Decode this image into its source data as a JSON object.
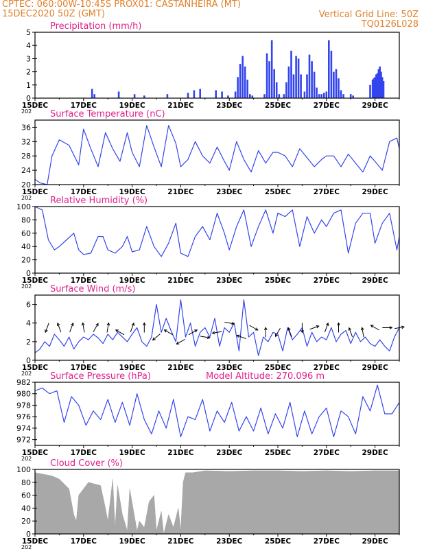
{
  "header": {
    "left_line1": "CPTEC:   060:00W-10:45S   PROX01: CASTANHEIRA (MT)",
    "left_line2": "15DEC2020  50Z  (GMT)",
    "right_line2": "Vertical Grid Line: 50Z",
    "right_line3": "TQ0126L028"
  },
  "colors": {
    "header": "#e0802a",
    "title": "#e0208a",
    "line": "#3344ee",
    "cloud": "#a8a8a8",
    "wind_arrow": "#000000"
  },
  "x_axis": {
    "tick_labels": [
      "15DEC",
      "17DEC",
      "19DEC",
      "21DEC",
      "23DEC",
      "25DEC",
      "27DEC",
      "29DEC"
    ],
    "tick_days": [
      0,
      2,
      4,
      6,
      8,
      10,
      12,
      14
    ],
    "year_stub": "202",
    "range_days": [
      0,
      15
    ]
  },
  "chart_data": [
    {
      "id": "precip",
      "type": "bar",
      "title": "Precipitation  (mm/h)",
      "ylim": [
        0,
        5
      ],
      "yticks": [
        0,
        1,
        2,
        3,
        4,
        5
      ],
      "x": [
        2.35,
        2.45,
        3.45,
        4.1,
        4.5,
        5.45,
        6.3,
        6.55,
        6.8,
        7.45,
        7.7,
        7.95,
        8.25,
        8.35,
        8.45,
        8.55,
        8.65,
        8.75,
        8.85,
        8.95,
        9.45,
        9.55,
        9.65,
        9.75,
        9.85,
        9.95,
        10.05,
        10.25,
        10.35,
        10.45,
        10.55,
        10.65,
        10.75,
        10.85,
        10.95,
        11.1,
        11.2,
        11.3,
        11.4,
        11.5,
        11.6,
        11.7,
        11.8,
        11.9,
        12.0,
        12.1,
        12.2,
        12.3,
        12.4,
        12.5,
        12.6,
        12.7,
        13.0,
        13.1,
        13.8,
        13.9,
        13.95,
        14.0,
        14.05,
        14.1,
        14.15,
        14.2,
        14.25,
        14.3,
        14.35
      ],
      "values": [
        0.7,
        0.3,
        0.5,
        0.3,
        0.2,
        0.3,
        0.4,
        0.6,
        0.7,
        0.6,
        0.5,
        0.2,
        0.5,
        1.6,
        2.6,
        3.2,
        2.4,
        1.4,
        0.3,
        0.2,
        0.3,
        3.4,
        2.8,
        4.4,
        2.2,
        1.2,
        0.3,
        0.3,
        1.2,
        2.4,
        3.6,
        1.8,
        3.2,
        3.0,
        1.8,
        0.5,
        1.8,
        3.3,
        2.8,
        2.0,
        0.8,
        0.3,
        0.3,
        0.4,
        0.5,
        4.4,
        3.6,
        2.0,
        2.2,
        1.5,
        0.6,
        0.3,
        0.3,
        0.2,
        1.0,
        1.4,
        1.5,
        1.6,
        1.8,
        1.9,
        2.2,
        2.4,
        2.0,
        1.6,
        1.3
      ]
    },
    {
      "id": "temp",
      "type": "line",
      "title": "Surface Temperature (nC)",
      "ylim": [
        20,
        38
      ],
      "yticks": [
        20,
        24,
        28,
        32,
        36
      ],
      "x": [
        0,
        0.2,
        0.5,
        0.7,
        1.0,
        1.4,
        1.8,
        2.0,
        2.3,
        2.6,
        2.9,
        3.2,
        3.5,
        3.8,
        4.0,
        4.3,
        4.6,
        4.9,
        5.2,
        5.5,
        5.8,
        6.0,
        6.3,
        6.6,
        6.9,
        7.2,
        7.5,
        7.8,
        8.0,
        8.3,
        8.6,
        8.9,
        9.2,
        9.5,
        9.8,
        10.0,
        10.3,
        10.6,
        10.9,
        11.2,
        11.5,
        11.8,
        12.0,
        12.3,
        12.6,
        12.9,
        13.2,
        13.5,
        13.8,
        14.0,
        14.3,
        14.6,
        14.9,
        15.0
      ],
      "values": [
        21.5,
        20.5,
        20.0,
        28.0,
        32.5,
        31.0,
        25.5,
        35.5,
        30.0,
        25.0,
        34.5,
        30.0,
        26.5,
        34.5,
        29.0,
        25.0,
        36.5,
        30.5,
        25.0,
        36.5,
        31.5,
        25.0,
        27.0,
        32.0,
        28.0,
        26.0,
        30.5,
        26.5,
        24.0,
        32.0,
        27.0,
        23.5,
        29.5,
        26.0,
        29.0,
        29.0,
        28.0,
        25.0,
        30.0,
        27.5,
        25.0,
        27.0,
        28.0,
        28.0,
        25.0,
        28.5,
        26.0,
        23.5,
        28.0,
        26.5,
        24.0,
        32.0,
        33.0,
        30.0
      ]
    },
    {
      "id": "rh",
      "type": "line",
      "title": "Relative Humidity  (%)",
      "ylim": [
        0,
        100
      ],
      "yticks": [
        0,
        20,
        40,
        60,
        80,
        100
      ],
      "x": [
        0,
        0.3,
        0.55,
        0.8,
        1.0,
        1.3,
        1.6,
        1.8,
        2.0,
        2.3,
        2.6,
        2.8,
        3.0,
        3.3,
        3.6,
        3.8,
        4.0,
        4.3,
        4.6,
        4.9,
        5.2,
        5.5,
        5.8,
        6.0,
        6.3,
        6.6,
        6.9,
        7.2,
        7.5,
        7.8,
        8.0,
        8.3,
        8.6,
        8.9,
        9.2,
        9.5,
        9.8,
        10.0,
        10.3,
        10.6,
        10.9,
        11.2,
        11.5,
        11.8,
        12.0,
        12.3,
        12.6,
        12.9,
        13.2,
        13.5,
        13.8,
        14.0,
        14.3,
        14.6,
        14.9,
        15.0
      ],
      "values": [
        100,
        95,
        50,
        35,
        40,
        50,
        60,
        35,
        28,
        30,
        55,
        55,
        35,
        30,
        40,
        55,
        32,
        35,
        70,
        40,
        25,
        45,
        75,
        30,
        25,
        55,
        70,
        50,
        90,
        60,
        35,
        70,
        95,
        40,
        70,
        95,
        60,
        90,
        85,
        95,
        40,
        85,
        60,
        80,
        70,
        90,
        95,
        30,
        75,
        90,
        90,
        45,
        75,
        90,
        35,
        55
      ]
    },
    {
      "id": "wind",
      "type": "line",
      "title": "Surface Wind  (m/s)",
      "ylim": [
        0,
        7
      ],
      "yticks": [
        0,
        2,
        4,
        6
      ],
      "x": [
        0,
        0.2,
        0.4,
        0.6,
        0.8,
        1.0,
        1.2,
        1.4,
        1.6,
        1.8,
        2.0,
        2.2,
        2.4,
        2.6,
        2.8,
        3.0,
        3.2,
        3.4,
        3.6,
        3.8,
        4.0,
        4.2,
        4.4,
        4.6,
        4.8,
        5.0,
        5.2,
        5.4,
        5.6,
        5.8,
        6.0,
        6.2,
        6.4,
        6.6,
        6.8,
        7.0,
        7.2,
        7.4,
        7.6,
        7.8,
        8.0,
        8.2,
        8.4,
        8.6,
        8.8,
        9.0,
        9.2,
        9.4,
        9.6,
        9.8,
        10.0,
        10.2,
        10.4,
        10.6,
        10.8,
        11.0,
        11.2,
        11.4,
        11.6,
        11.8,
        12.0,
        12.2,
        12.4,
        12.6,
        12.8,
        13.0,
        13.2,
        13.4,
        13.6,
        13.8,
        14.0,
        14.2,
        14.4,
        14.6,
        14.8,
        15.0
      ],
      "values": [
        0.8,
        1.2,
        2.0,
        1.5,
        2.8,
        2.2,
        1.5,
        2.5,
        1.2,
        2.0,
        2.5,
        2.2,
        2.8,
        2.4,
        1.8,
        2.8,
        2.2,
        3.0,
        2.5,
        2.0,
        2.8,
        3.5,
        2.0,
        1.5,
        2.5,
        6.0,
        3.0,
        4.5,
        3.2,
        2.0,
        6.5,
        2.5,
        4.0,
        1.5,
        3.0,
        3.5,
        2.5,
        4.5,
        1.5,
        3.5,
        3.0,
        4.0,
        1.0,
        6.5,
        2.5,
        3.0,
        0.5,
        2.5,
        2.0,
        3.0,
        2.8,
        1.0,
        3.5,
        2.2,
        2.8,
        3.5,
        1.5,
        3.0,
        2.0,
        2.5,
        2.2,
        3.5,
        2.0,
        2.8,
        3.2,
        1.8,
        3.0,
        2.0,
        2.5,
        1.8,
        1.5,
        2.2,
        1.5,
        1.0,
        2.5,
        3.5
      ],
      "arrows": {
        "x": [
          0.5,
          1.0,
          1.5,
          2.0,
          2.5,
          3.0,
          3.5,
          4.0,
          4.5,
          5.0,
          5.5,
          6.0,
          6.5,
          7.0,
          7.5,
          8.0,
          8.5,
          9.0,
          9.5,
          10.0,
          10.5,
          11.0,
          11.5,
          12.0,
          12.5,
          13.0,
          13.5,
          14.0,
          14.5,
          15.0
        ],
        "y": [
          3.5,
          3.5,
          3.5,
          3.5,
          3.5,
          3.5,
          3.0,
          3.5,
          3.5,
          2.5,
          3.0,
          2.0,
          3.0,
          2.5,
          3.0,
          4.0,
          2.5,
          3.5,
          3.0,
          3.0,
          3.0,
          3.5,
          3.5,
          3.5,
          3.5,
          3.0,
          3.0,
          3.5,
          3.5,
          3.5
        ],
        "dir_deg": [
          200,
          340,
          20,
          350,
          30,
          10,
          300,
          20,
          0,
          230,
          300,
          240,
          60,
          100,
          260,
          100,
          290,
          120,
          0,
          210,
          340,
          180,
          70,
          20,
          0,
          340,
          350,
          300,
          90,
          80
        ]
      }
    },
    {
      "id": "pres",
      "type": "line",
      "title": "Surface Pressure  (hPa)",
      "subtitle": "Model Altitude: 270.096  m",
      "ylim": [
        971,
        982
      ],
      "yticks": [
        972,
        974,
        976,
        978,
        980,
        982
      ],
      "x": [
        0,
        0.3,
        0.6,
        0.9,
        1.2,
        1.5,
        1.8,
        2.1,
        2.4,
        2.7,
        3.0,
        3.3,
        3.6,
        3.9,
        4.2,
        4.5,
        4.8,
        5.1,
        5.4,
        5.7,
        6.0,
        6.3,
        6.6,
        6.9,
        7.2,
        7.5,
        7.8,
        8.1,
        8.4,
        8.7,
        9.0,
        9.3,
        9.6,
        9.9,
        10.2,
        10.5,
        10.8,
        11.1,
        11.4,
        11.7,
        12.0,
        12.3,
        12.6,
        12.9,
        13.2,
        13.5,
        13.8,
        14.1,
        14.4,
        14.7,
        15.0
      ],
      "values": [
        980.5,
        981.0,
        980.0,
        980.5,
        975.0,
        979.5,
        978.0,
        974.5,
        977.0,
        975.5,
        979.0,
        975.0,
        978.5,
        974.5,
        980.0,
        975.5,
        973.0,
        977.0,
        974.0,
        979.0,
        972.5,
        976.0,
        975.5,
        979.0,
        973.5,
        977.0,
        975.0,
        978.5,
        973.5,
        976.0,
        973.5,
        977.5,
        973.0,
        976.5,
        974.0,
        978.5,
        972.5,
        977.0,
        973.0,
        976.0,
        977.5,
        972.5,
        977.0,
        976.0,
        973.0,
        979.5,
        977.0,
        981.5,
        976.5,
        976.5,
        978.5
      ]
    },
    {
      "id": "cloud",
      "type": "area",
      "title": "Cloud Cover  (%)",
      "ylim": [
        0,
        100
      ],
      "yticks": [
        0,
        20,
        40,
        60,
        80,
        100
      ],
      "x": [
        0,
        0.7,
        1.0,
        1.4,
        1.5,
        1.6,
        1.7,
        1.8,
        2.2,
        2.7,
        2.9,
        3.0,
        3.2,
        3.3,
        3.4,
        3.6,
        3.8,
        3.9,
        4.2,
        4.3,
        4.5,
        4.7,
        4.9,
        5.0,
        5.2,
        5.3,
        5.5,
        5.7,
        5.9,
        6.0,
        6.1,
        6.2,
        6.5,
        7.0,
        8.0,
        9.0,
        10.0,
        11.0,
        12.0,
        13.0,
        14.0,
        15.0
      ],
      "values": [
        95,
        90,
        85,
        70,
        50,
        30,
        20,
        60,
        80,
        75,
        40,
        20,
        85,
        10,
        75,
        30,
        5,
        70,
        5,
        20,
        10,
        50,
        60,
        5,
        35,
        0,
        30,
        10,
        40,
        5,
        80,
        95,
        95,
        98,
        97,
        98,
        98,
        97,
        98,
        97,
        98,
        98
      ]
    }
  ]
}
